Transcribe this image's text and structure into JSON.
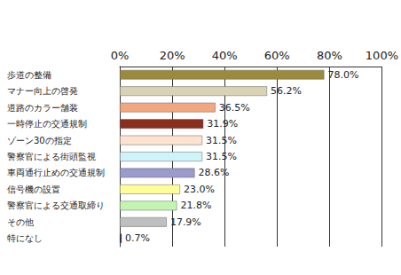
{
  "chart_data": {
    "type": "bar",
    "orientation": "horizontal",
    "categories": [
      "歩道の整備",
      "マナー向上の啓発",
      "道路のカラー舗装",
      "一時停止の交通規制",
      "ゾーン30の指定",
      "警察官による街頭監視",
      "車両通行止めの交通規制",
      "信号機の設置",
      "警察官による交通取締り",
      "その他",
      "特になし"
    ],
    "values": [
      78.0,
      56.2,
      36.5,
      31.9,
      31.5,
      31.5,
      28.6,
      23.0,
      21.8,
      17.9,
      0.7
    ],
    "value_labels": [
      "78.0%",
      "56.2%",
      "36.5%",
      "31.9%",
      "31.5%",
      "31.5%",
      "28.6%",
      "23.0%",
      "21.8%",
      "17.9%",
      "0.7%"
    ],
    "colors": [
      "#9c8a3c",
      "#d9d2b4",
      "#f4a67e",
      "#8b2e1e",
      "#fde2d0",
      "#cdf5f8",
      "#9a9acb",
      "#ffff99",
      "#c4f5b0",
      "#bfbfbf",
      "#000033"
    ],
    "xlim": [
      0,
      100
    ],
    "xticks": [
      {
        "value": 0,
        "label": "0%"
      },
      {
        "value": 20,
        "label": "20%"
      },
      {
        "value": 40,
        "label": "40%"
      },
      {
        "value": 60,
        "label": "60%"
      },
      {
        "value": 80,
        "label": "80%"
      },
      {
        "value": 100,
        "label": "100%"
      }
    ],
    "grid": true,
    "data_labels": true
  }
}
